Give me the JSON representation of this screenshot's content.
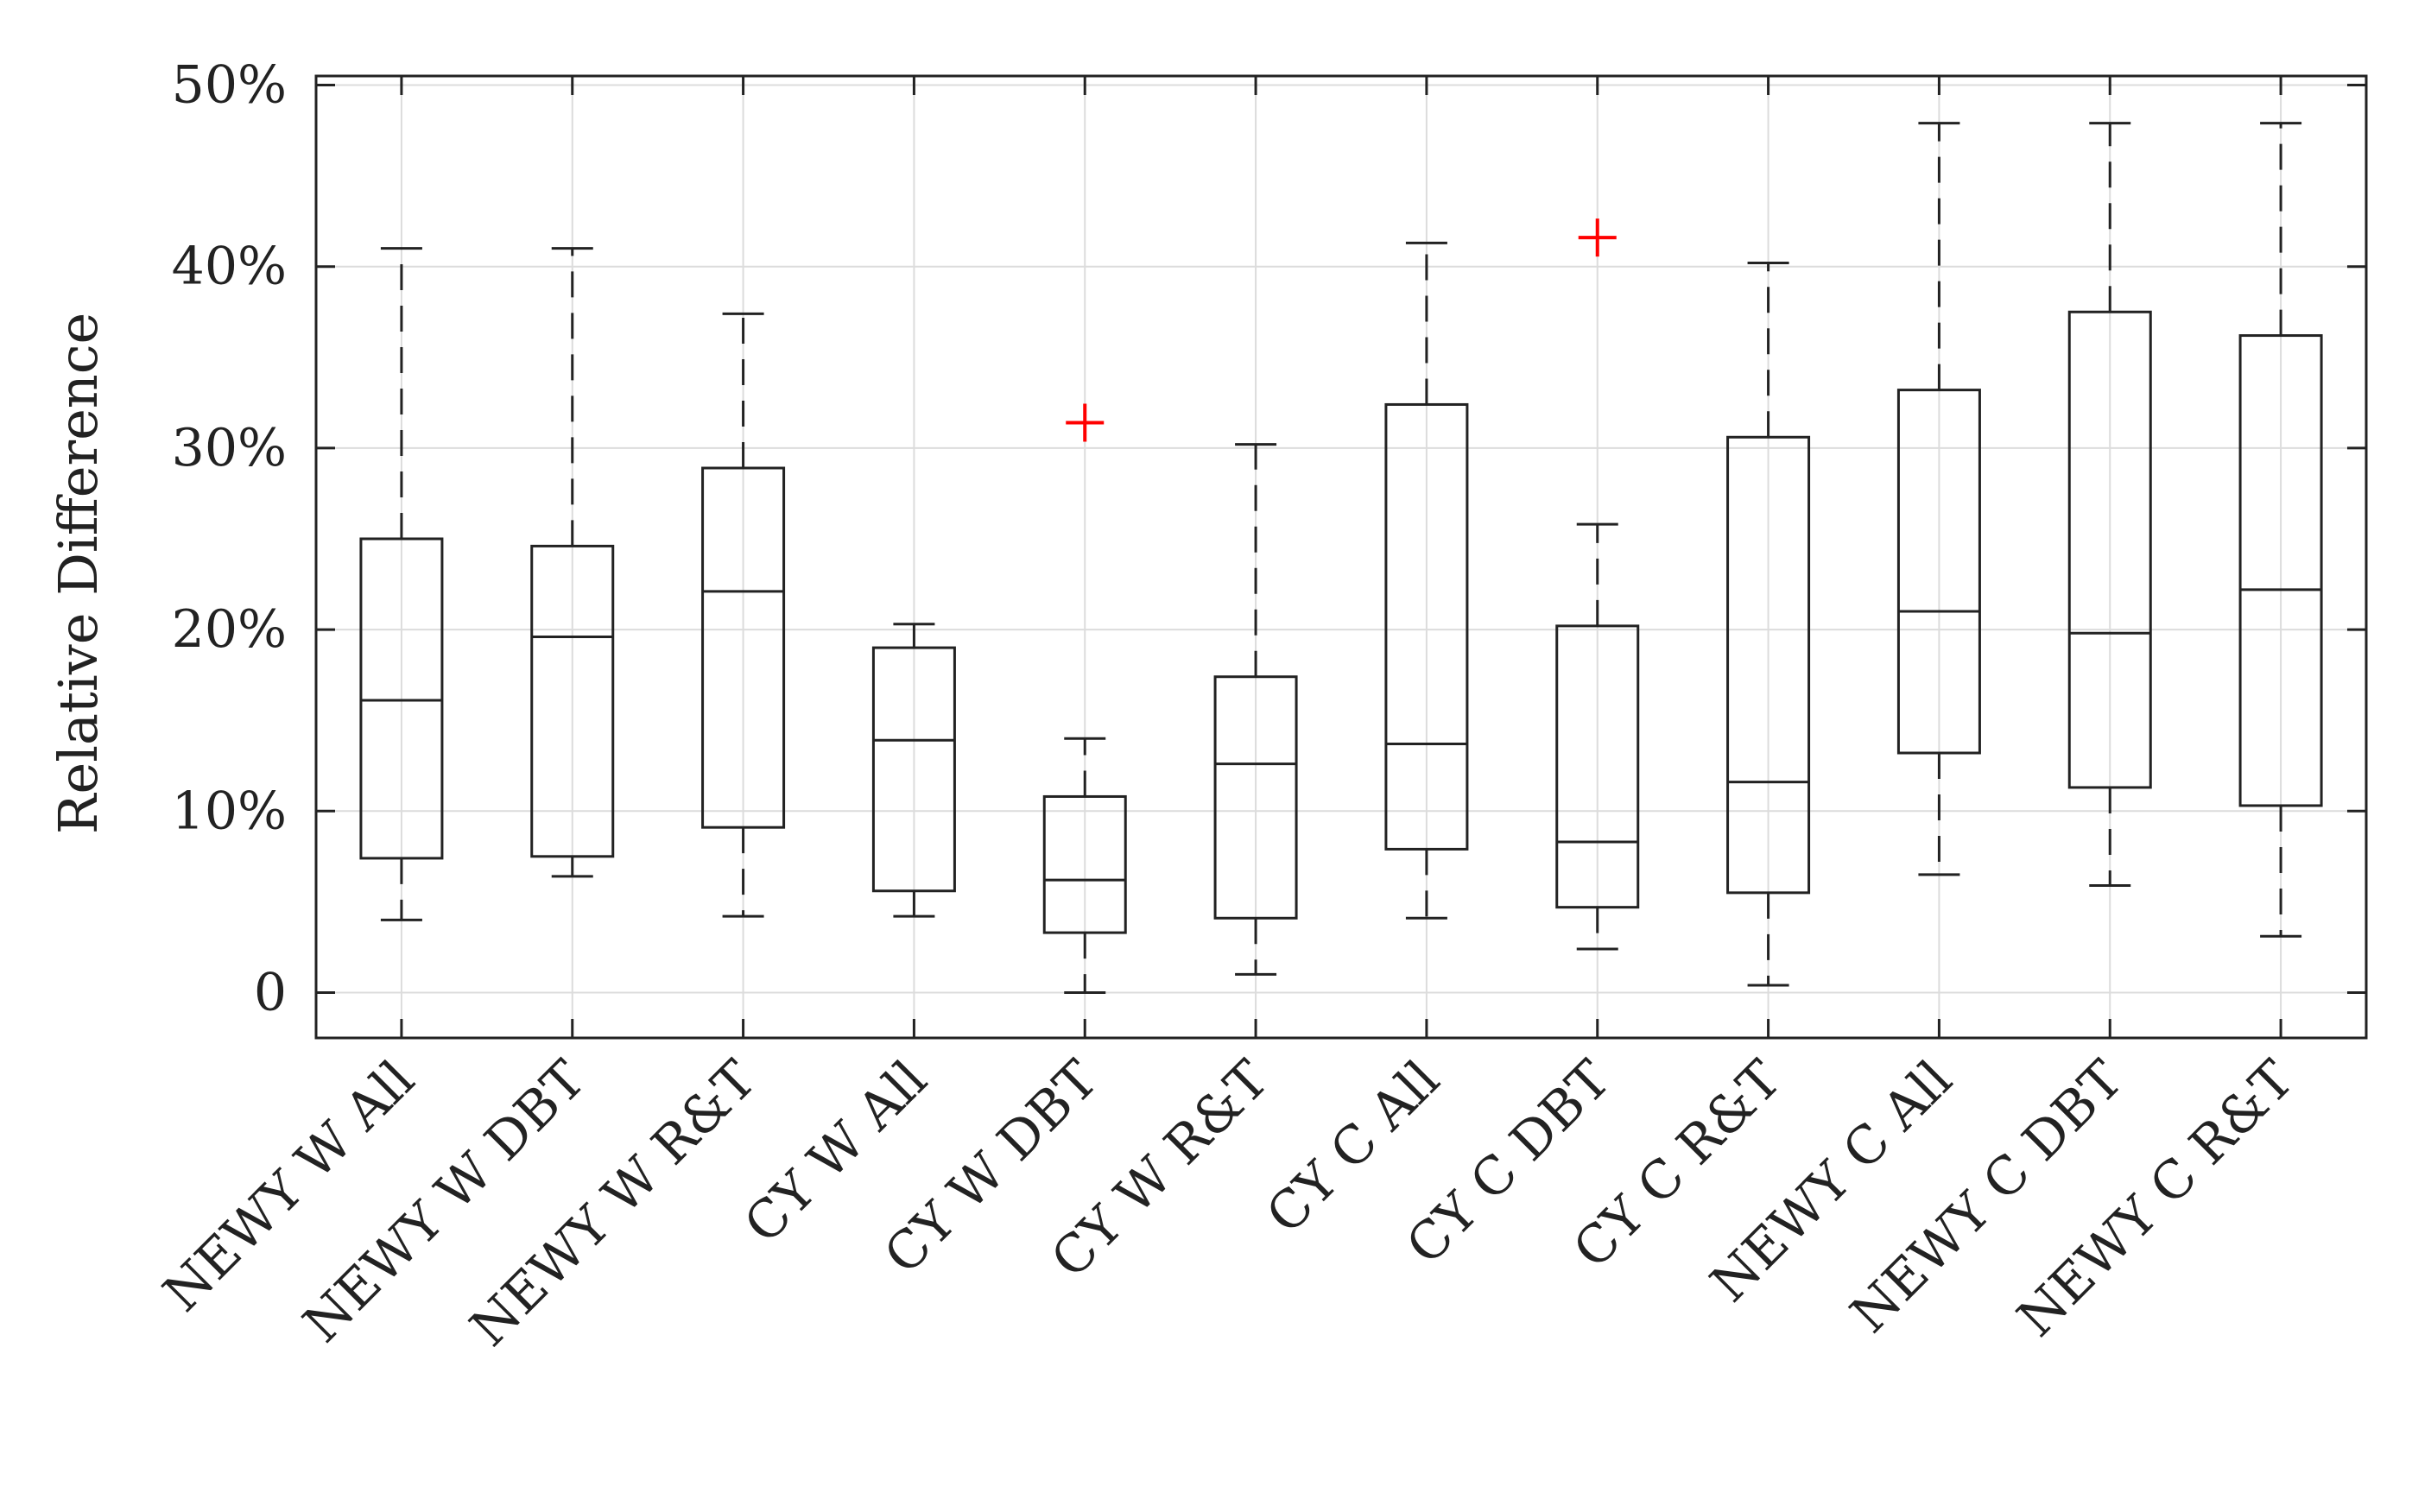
{
  "chart_data": {
    "type": "boxplot",
    "title": "",
    "xlabel": "",
    "ylabel": "Relative Difference",
    "ylim": [
      -2.5,
      50.5
    ],
    "grid": true,
    "yticks": [
      0,
      10,
      20,
      30,
      40,
      50
    ],
    "ytick_labels": [
      "0",
      "10%",
      "20%",
      "30%",
      "40%",
      "50%"
    ],
    "categories": [
      "NEWY W All",
      "NEWY W DBT",
      "NEWY W R&T",
      "CY W All",
      "CY W DBT",
      "CY W R&T",
      "CY C All",
      "CY C DBT",
      "CY C R&T",
      "NEWY C All",
      "NEWY C DBT",
      "NEWY C R&T"
    ],
    "boxes": [
      {
        "whisker_low": 4.0,
        "q1": 7.4,
        "median": 16.1,
        "q3": 25.0,
        "whisker_high": 41.0,
        "outliers": []
      },
      {
        "whisker_low": 6.4,
        "q1": 7.5,
        "median": 19.6,
        "q3": 24.6,
        "whisker_high": 41.0,
        "outliers": []
      },
      {
        "whisker_low": 4.2,
        "q1": 9.1,
        "median": 22.1,
        "q3": 28.9,
        "whisker_high": 37.4,
        "outliers": []
      },
      {
        "whisker_low": 4.2,
        "q1": 5.6,
        "median": 13.9,
        "q3": 19.0,
        "whisker_high": 20.3,
        "outliers": []
      },
      {
        "whisker_low": 0.0,
        "q1": 3.3,
        "median": 6.2,
        "q3": 10.8,
        "whisker_high": 14.0,
        "outliers": [
          31.4
        ]
      },
      {
        "whisker_low": 1.0,
        "q1": 4.1,
        "median": 12.6,
        "q3": 17.4,
        "whisker_high": 30.2,
        "outliers": []
      },
      {
        "whisker_low": 4.1,
        "q1": 7.9,
        "median": 13.7,
        "q3": 32.4,
        "whisker_high": 41.3,
        "outliers": []
      },
      {
        "whisker_low": 2.4,
        "q1": 4.7,
        "median": 8.3,
        "q3": 20.2,
        "whisker_high": 25.8,
        "outliers": [
          41.6
        ]
      },
      {
        "whisker_low": 0.4,
        "q1": 5.5,
        "median": 11.6,
        "q3": 30.6,
        "whisker_high": 40.2,
        "outliers": []
      },
      {
        "whisker_low": 6.5,
        "q1": 13.2,
        "median": 21.0,
        "q3": 33.2,
        "whisker_high": 47.9,
        "outliers": []
      },
      {
        "whisker_low": 5.9,
        "q1": 11.3,
        "median": 19.8,
        "q3": 37.5,
        "whisker_high": 47.9,
        "outliers": []
      },
      {
        "whisker_low": 3.1,
        "q1": 10.3,
        "median": 22.2,
        "q3": 36.2,
        "whisker_high": 47.9,
        "outliers": []
      }
    ],
    "colors": {
      "box": "#222222",
      "outlier": "#ff0000",
      "grid": "#dcdcdc",
      "axis": "#222222"
    }
  }
}
